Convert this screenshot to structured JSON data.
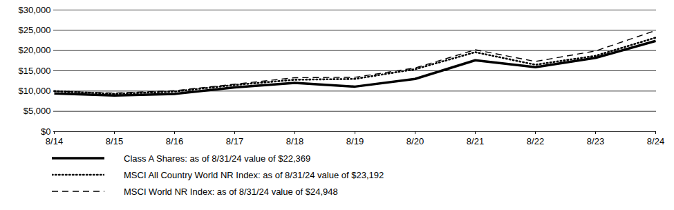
{
  "chart_data": {
    "type": "line",
    "x": [
      "8/14",
      "8/15",
      "8/16",
      "8/17",
      "8/18",
      "8/19",
      "8/20",
      "8/21",
      "8/22",
      "8/23",
      "8/24"
    ],
    "series": [
      {
        "name": "Class A Shares: as of 8/31/24 value of $22,369",
        "color": "#000000",
        "line_style": "solid",
        "values": [
          9425,
          8900,
          9300,
          10900,
          12000,
          11100,
          13000,
          17600,
          15900,
          18200,
          22369
        ]
      },
      {
        "name": "MSCI All Country World NR Index: as of 8/31/24 value of $23,192",
        "color": "#000000",
        "line_style": "dotted",
        "values": [
          10000,
          9300,
          9900,
          11500,
          12800,
          13000,
          15400,
          19600,
          16500,
          18700,
          23192
        ]
      },
      {
        "name": "MSCI World NR Index: as of 8/31/24 value of $24,948",
        "color": "#000000",
        "line_style": "dashed",
        "values": [
          10000,
          9500,
          10100,
          11700,
          13300,
          13400,
          15700,
          20200,
          17300,
          19900,
          24948
        ]
      }
    ],
    "ylim": [
      0,
      30000
    ],
    "yticks": [
      {
        "value": 0,
        "label": "$0"
      },
      {
        "value": 5000,
        "label": "$5,000"
      },
      {
        "value": 10000,
        "label": "$10,000"
      },
      {
        "value": 15000,
        "label": "$15,000"
      },
      {
        "value": 20000,
        "label": "$20,000"
      },
      {
        "value": 25000,
        "label": "$25,000"
      },
      {
        "value": 30000,
        "label": "$30,000"
      }
    ],
    "grid": true,
    "legend": "bottom"
  }
}
